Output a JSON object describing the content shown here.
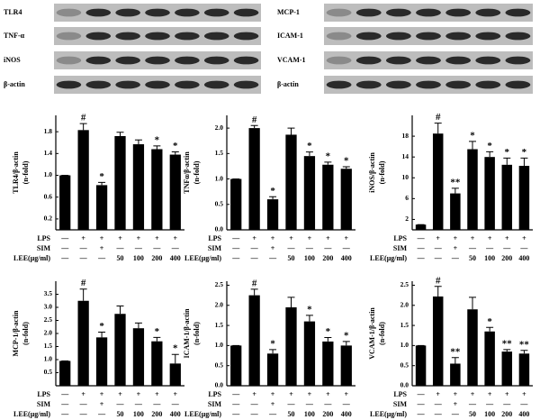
{
  "blots": {
    "left": {
      "labels": [
        "TLR4",
        "TNF-α",
        "iNOS",
        "β-actin"
      ]
    },
    "right": {
      "labels": [
        "MCP-1",
        "ICAM-1",
        "VCAM-1",
        "β-actin"
      ]
    }
  },
  "chart_data": [
    {
      "type": "bar",
      "y_label": "TLR4/β-actin",
      "y_unit": "(n-fold)",
      "color": "#000000",
      "categories": [
        null,
        null,
        null,
        null,
        null,
        null,
        null
      ],
      "values": [
        1.0,
        1.83,
        0.82,
        1.72,
        1.57,
        1.48,
        1.38
      ],
      "errors": [
        0,
        0.12,
        0.05,
        0.07,
        0.08,
        0.06,
        0.05
      ],
      "annotations": [
        null,
        "#",
        "*",
        null,
        null,
        "*",
        "*"
      ],
      "ylim": [
        0,
        2.1
      ],
      "yticks": [
        0.2,
        0.6,
        {
          "value": 1,
          "label": "1.0"
        },
        1.4,
        1.8
      ],
      "table_rows": [
        {
          "label": "LPS",
          "cells": [
            "—",
            "+",
            "+",
            "+",
            "+",
            "+",
            "+"
          ]
        },
        {
          "label": "SIM",
          "cells": [
            "—",
            "—",
            "+",
            "—",
            "—",
            "—",
            "—"
          ]
        },
        {
          "label": "LEE(μg/ml)",
          "cells": [
            "—",
            "—",
            "—",
            "50",
            "100",
            "200",
            "400"
          ]
        }
      ]
    },
    {
      "type": "bar",
      "y_label": "TNFα/β-actin",
      "y_unit": "(n-fold)",
      "color": "#000000",
      "categories": [
        null,
        null,
        null,
        null,
        null,
        null,
        null
      ],
      "values": [
        1.0,
        2.0,
        0.6,
        1.87,
        1.45,
        1.28,
        1.2
      ],
      "errors": [
        0,
        0.05,
        0.05,
        0.13,
        0.08,
        0.05,
        0.04
      ],
      "annotations": [
        null,
        "#",
        "*",
        null,
        "*",
        "*",
        "*"
      ],
      "ylim": [
        0,
        2.25
      ],
      "yticks": [
        {
          "value": 0,
          "label": "0.0"
        },
        0.5,
        {
          "value": 1,
          "label": "1.0"
        },
        1.5,
        {
          "value": 2,
          "label": "2.0"
        }
      ],
      "table_rows": [
        {
          "label": "LPS",
          "cells": [
            "—",
            "+",
            "+",
            "+",
            "+",
            "+",
            "+"
          ]
        },
        {
          "label": "SIM",
          "cells": [
            "—",
            "—",
            "+",
            "—",
            "—",
            "—",
            "—"
          ]
        },
        {
          "label": "LEE(μg/ml)",
          "cells": [
            "—",
            "—",
            "—",
            "50",
            "100",
            "200",
            "400"
          ]
        }
      ]
    },
    {
      "type": "bar",
      "y_label": "iNOS/β-actin",
      "y_unit": "(n-fold)",
      "color": "#000000",
      "categories": [
        null,
        null,
        null,
        null,
        null,
        null,
        null
      ],
      "values": [
        1.0,
        18.5,
        7.0,
        15.5,
        14.0,
        12.5,
        12.3
      ],
      "errors": [
        0,
        2.0,
        1.0,
        1.5,
        1.0,
        1.3,
        1.5
      ],
      "annotations": [
        null,
        "#",
        "**",
        "*",
        "*",
        "*",
        "*"
      ],
      "ylim": [
        0,
        22
      ],
      "yticks": [
        2,
        6,
        10,
        14,
        18
      ],
      "table_rows": [
        {
          "label": "LPS",
          "cells": [
            "—",
            "+",
            "+",
            "+",
            "+",
            "+",
            "+"
          ]
        },
        {
          "label": "SIM",
          "cells": [
            "—",
            "—",
            "+",
            "—",
            "—",
            "—",
            "—"
          ]
        },
        {
          "label": "LEE(μg/ml)",
          "cells": [
            "—",
            "—",
            "—",
            "50",
            "100",
            "200",
            "400"
          ]
        }
      ]
    },
    {
      "type": "bar",
      "y_label": "MCP-1/β-actin",
      "y_unit": "(n-fold)",
      "color": "#000000",
      "categories": [
        null,
        null,
        null,
        null,
        null,
        null,
        null
      ],
      "values": [
        0.95,
        3.25,
        1.85,
        2.75,
        2.2,
        1.7,
        0.85
      ],
      "errors": [
        0,
        0.45,
        0.2,
        0.3,
        0.2,
        0.15,
        0.35
      ],
      "annotations": [
        null,
        "#",
        "*",
        null,
        null,
        "*",
        "*"
      ],
      "ylim": [
        0,
        4
      ],
      "yticks": [
        0.5,
        {
          "value": 1,
          "label": "1.0"
        },
        1.5,
        {
          "value": 2,
          "label": "2.0"
        },
        2.5,
        {
          "value": 3,
          "label": "3.0"
        },
        3.5
      ],
      "table_rows": [
        {
          "label": "LPS",
          "cells": [
            "—",
            "+",
            "+",
            "+",
            "+",
            "+",
            "+"
          ]
        },
        {
          "label": "SIM",
          "cells": [
            "—",
            "—",
            "+",
            "—",
            "—",
            "—",
            "—"
          ]
        },
        {
          "label": "LEE(μg/ml)",
          "cells": [
            "—",
            "—",
            "—",
            "50",
            "100",
            "200",
            "400"
          ]
        }
      ]
    },
    {
      "type": "bar",
      "y_label": "ICAM-1/β-actin",
      "y_unit": "(n-fold)",
      "color": "#000000",
      "categories": [
        null,
        null,
        null,
        null,
        null,
        null,
        null
      ],
      "values": [
        1.0,
        2.25,
        0.8,
        1.95,
        1.6,
        1.1,
        1.0
      ],
      "errors": [
        0,
        0.15,
        0.1,
        0.25,
        0.15,
        0.1,
        0.1
      ],
      "annotations": [
        null,
        "#",
        "*",
        null,
        "*",
        "*",
        "*"
      ],
      "ylim": [
        0,
        2.6
      ],
      "yticks": [
        {
          "value": 0,
          "label": "0.0"
        },
        0.5,
        {
          "value": 1,
          "label": "1.0"
        },
        1.5,
        {
          "value": 2,
          "label": "2.0"
        },
        2.5
      ],
      "table_rows": [
        {
          "label": "LPS",
          "cells": [
            "—",
            "+",
            "+",
            "+",
            "+",
            "+",
            "+"
          ]
        },
        {
          "label": "SIM",
          "cells": [
            "—",
            "—",
            "+",
            "—",
            "—",
            "—",
            "—"
          ]
        },
        {
          "label": "LEE(μg/ml)",
          "cells": [
            "—",
            "—",
            "—",
            "50",
            "100",
            "200",
            "400"
          ]
        }
      ]
    },
    {
      "type": "bar",
      "y_label": "VCAM-1/β-actin",
      "y_unit": "(n-fold)",
      "color": "#000000",
      "categories": [
        null,
        null,
        null,
        null,
        null,
        null,
        null
      ],
      "values": [
        1.0,
        2.22,
        0.55,
        1.9,
        1.35,
        0.85,
        0.8
      ],
      "errors": [
        0,
        0.25,
        0.15,
        0.3,
        0.1,
        0.05,
        0.08
      ],
      "annotations": [
        null,
        "#",
        "**",
        null,
        "*",
        "**",
        "**"
      ],
      "ylim": [
        0,
        2.6
      ],
      "yticks": [
        {
          "value": 0,
          "label": "0.0"
        },
        0.5,
        {
          "value": 1,
          "label": "1.0"
        },
        1.5,
        {
          "value": 2,
          "label": "2.0"
        },
        2.5
      ],
      "table_rows": [
        {
          "label": "LPS",
          "cells": [
            "—",
            "+",
            "+",
            "+",
            "+",
            "+",
            "+"
          ]
        },
        {
          "label": "SIM",
          "cells": [
            "—",
            "—",
            "+",
            "—",
            "—",
            "—",
            "—"
          ]
        },
        {
          "label": "LEE(μg/ml)",
          "cells": [
            "—",
            "—",
            "—",
            "50",
            "100",
            "200",
            "400"
          ]
        }
      ]
    }
  ]
}
